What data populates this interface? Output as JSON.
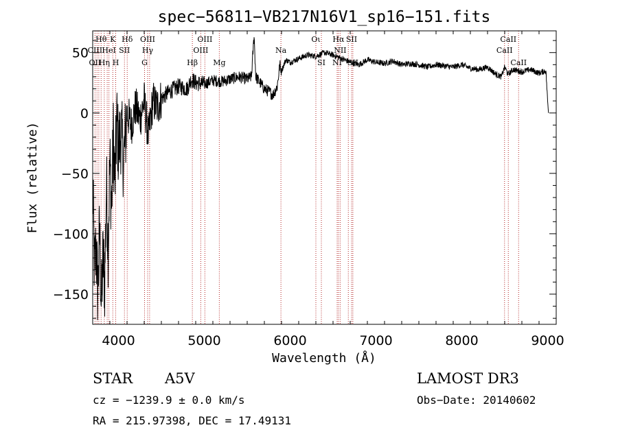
{
  "footer": {
    "object_class": "STAR",
    "subclass": "A5V",
    "survey": "LAMOST DR3",
    "cz": "cz = −1239.9 ± 0.0 km/s",
    "obs_date": "Obs−Date: 20140602",
    "radec": "RA = 215.97398, DEC =  17.49131"
  },
  "colors": {
    "spectrum": "#000000",
    "line_markers": "#b22222",
    "frame": "#000000"
  },
  "chart_data": {
    "type": "line",
    "title": "spec−56811−VB217N16V1_sp16−151.fits",
    "xlabel": "Wavelength (Å)",
    "ylabel": "Flux (relative)",
    "xlim": [
      3700,
      9100
    ],
    "ylim": [
      -175,
      68
    ],
    "xticks": [
      4000,
      5000,
      6000,
      7000,
      8000,
      9000
    ],
    "yticks": [
      -150,
      -100,
      -50,
      0,
      50
    ],
    "grid": false,
    "series": [
      {
        "name": "flux",
        "x": [
          3700,
          3720,
          3740,
          3760,
          3780,
          3800,
          3820,
          3840,
          3860,
          3880,
          3900,
          3920,
          3940,
          3960,
          3980,
          4000,
          4030,
          4060,
          4100,
          4150,
          4200,
          4250,
          4300,
          4350,
          4400,
          4450,
          4500,
          4600,
          4700,
          4800,
          4850,
          4900,
          5000,
          5100,
          5200,
          5300,
          5400,
          5500,
          5550,
          5580,
          5600,
          5650,
          5700,
          5750,
          5800,
          5850,
          5880,
          5900,
          5950,
          6000,
          6100,
          6200,
          6300,
          6400,
          6500,
          6600,
          6700,
          6800,
          6900,
          7000,
          7100,
          7200,
          7300,
          7400,
          7500,
          7600,
          7700,
          7800,
          7900,
          8000,
          8100,
          8200,
          8300,
          8400,
          8460,
          8500,
          8540,
          8600,
          8650,
          8700,
          8800,
          8900,
          8980,
          9000,
          9010
        ],
        "y": [
          -60,
          -130,
          -110,
          -150,
          -95,
          -160,
          -120,
          -140,
          -60,
          -110,
          -40,
          -80,
          -20,
          -60,
          -5,
          -30,
          -15,
          -40,
          0,
          -10,
          5,
          -5,
          10,
          -20,
          10,
          5,
          12,
          18,
          22,
          20,
          28,
          25,
          24,
          27,
          26,
          28,
          30,
          28,
          30,
          65,
          30,
          25,
          20,
          18,
          15,
          22,
          40,
          35,
          44,
          42,
          45,
          48,
          47,
          50,
          48,
          45,
          42,
          40,
          44,
          42,
          41,
          43,
          40,
          41,
          40,
          38,
          40,
          39,
          38,
          40,
          37,
          36,
          38,
          32,
          30,
          38,
          32,
          36,
          35,
          34,
          36,
          33,
          35,
          10,
          0
        ]
      }
    ],
    "spectral_lines": [
      {
        "label": "Hθ",
        "x": 3798,
        "row": 0
      },
      {
        "label": "K",
        "x": 3934,
        "row": 0
      },
      {
        "label": "Hδ",
        "x": 4102,
        "row": 0
      },
      {
        "label": "OIII",
        "x": 4340,
        "row": 0
      },
      {
        "label": "OIII",
        "x": 5007,
        "row": 0
      },
      {
        "label": "Oι",
        "x": 6300,
        "row": 0
      },
      {
        "label": "Hα",
        "x": 6563,
        "row": 0
      },
      {
        "label": "SII",
        "x": 6716,
        "row": 0
      },
      {
        "label": "CaII",
        "x": 8542,
        "row": 0
      },
      {
        "label": "CIII",
        "x": 3727,
        "row": 1
      },
      {
        "label": "HeI",
        "x": 3889,
        "row": 1
      },
      {
        "label": "SII",
        "x": 4070,
        "row": 1
      },
      {
        "label": "Hγ",
        "x": 4340,
        "row": 1
      },
      {
        "label": "OIII",
        "x": 4959,
        "row": 1
      },
      {
        "label": "Na",
        "x": 5893,
        "row": 1
      },
      {
        "label": "NII",
        "x": 6583,
        "row": 1
      },
      {
        "label": "CaII",
        "x": 8498,
        "row": 1
      },
      {
        "label": "OII",
        "x": 3727,
        "row": 2
      },
      {
        "label": "Hη",
        "x": 3835,
        "row": 2
      },
      {
        "label": "H",
        "x": 3968,
        "row": 2
      },
      {
        "label": "G",
        "x": 4304,
        "row": 2
      },
      {
        "label": "Hβ",
        "x": 4861,
        "row": 2
      },
      {
        "label": "Mg",
        "x": 5175,
        "row": 2
      },
      {
        "label": "SI",
        "x": 6364,
        "row": 2
      },
      {
        "label": "NI",
        "x": 6548,
        "row": 2
      },
      {
        "label": "SII",
        "x": 6731,
        "row": 2
      },
      {
        "label": "CaII",
        "x": 8662,
        "row": 2
      }
    ],
    "line_positions": [
      3727,
      3750,
      3771,
      3798,
      3835,
      3869,
      3889,
      3934,
      3968,
      4070,
      4102,
      4304,
      4340,
      4363,
      4861,
      4959,
      5007,
      5175,
      5893,
      6300,
      6364,
      6548,
      6563,
      6583,
      6678,
      6716,
      6731,
      8498,
      8542,
      8662
    ]
  }
}
